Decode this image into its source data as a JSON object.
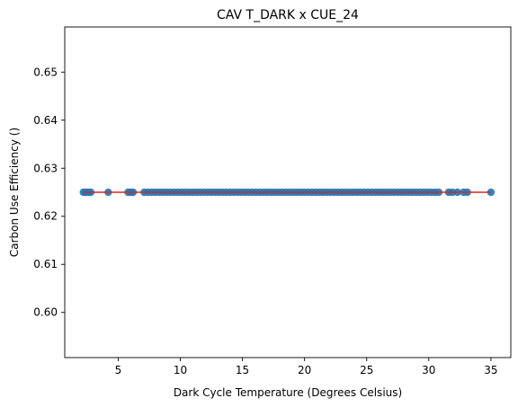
{
  "chart_data": {
    "type": "scatter",
    "title": "CAV T_DARK x CUE_24",
    "xlabel": "Dark Cycle Temperature (Degrees Celsius)",
    "ylabel": "Carbon Use Efficiency ()",
    "xlim": [
      0.7,
      36.6
    ],
    "ylim": [
      0.5906,
      0.6594
    ],
    "xticks": [
      5,
      10,
      15,
      20,
      25,
      30,
      35
    ],
    "yticks": [
      0.6,
      0.61,
      0.62,
      0.63,
      0.64,
      0.65
    ],
    "xtick_labels": [
      "5",
      "10",
      "15",
      "20",
      "25",
      "30",
      "35"
    ],
    "ytick_labels": [
      "0.60",
      "0.61",
      "0.62",
      "0.63",
      "0.64",
      "0.65"
    ],
    "grid": false,
    "legend": "none",
    "colors": {
      "points": "#1f77b4",
      "fit_line": "#d62728"
    },
    "series": [
      {
        "kind": "points",
        "x": [
          2.2,
          2.4,
          2.6,
          2.8,
          4.2,
          5.8,
          6.0,
          6.2,
          7.1,
          7.4,
          7.7,
          8.0,
          8.3,
          8.6,
          8.9,
          9.2,
          9.5,
          9.8,
          10.1,
          10.4,
          10.7,
          11.0,
          11.3,
          11.6,
          11.9,
          12.2,
          12.5,
          12.8,
          13.1,
          13.4,
          13.7,
          14.0,
          14.3,
          14.6,
          14.9,
          15.2,
          15.5,
          15.8,
          16.1,
          16.4,
          16.7,
          17.0,
          17.3,
          17.6,
          17.9,
          18.2,
          18.5,
          18.8,
          19.1,
          19.4,
          19.7,
          20.0,
          20.3,
          20.6,
          20.9,
          21.2,
          21.5,
          21.8,
          22.1,
          22.4,
          22.7,
          23.0,
          23.3,
          23.6,
          23.9,
          24.2,
          24.5,
          24.8,
          25.1,
          25.4,
          25.7,
          26.0,
          26.3,
          26.6,
          26.9,
          27.2,
          27.5,
          27.8,
          28.1,
          28.4,
          28.7,
          29.0,
          29.3,
          29.6,
          29.9,
          30.2,
          30.5,
          30.8,
          31.6,
          31.9,
          32.3,
          32.8,
          33.1,
          35.0
        ],
        "y_constant": 0.625
      },
      {
        "kind": "fit_line",
        "x": [
          2.2,
          35.0
        ],
        "y": [
          0.625,
          0.625
        ]
      }
    ]
  }
}
